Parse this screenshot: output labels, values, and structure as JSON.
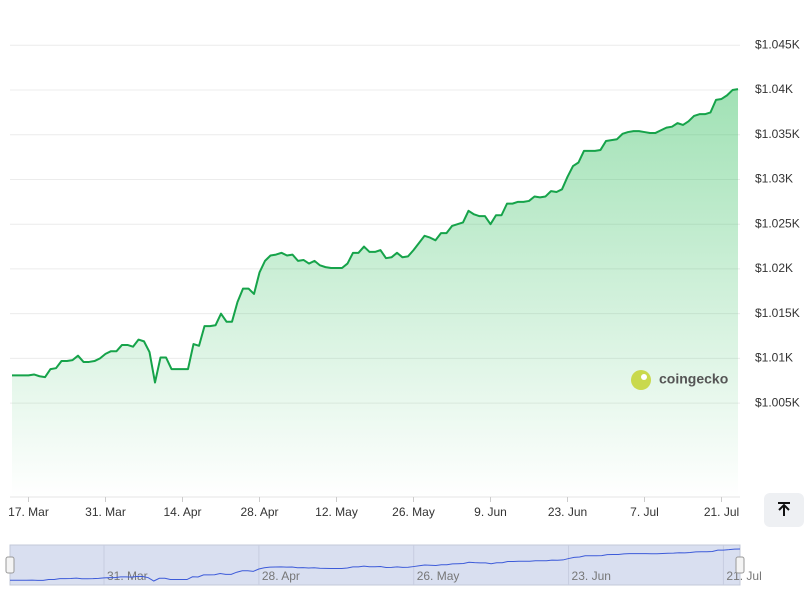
{
  "chart_data": {
    "type": "area",
    "categories": [
      null,
      null,
      null,
      "17. Mar",
      null,
      null,
      null,
      null,
      null,
      null,
      null,
      null,
      null,
      null,
      null,
      null,
      null,
      "31. Mar",
      null,
      null,
      null,
      null,
      null,
      null,
      null,
      null,
      null,
      null,
      null,
      null,
      null,
      "14. Apr",
      null,
      null,
      null,
      null,
      null,
      null,
      null,
      null,
      null,
      null,
      null,
      null,
      null,
      "28. Apr",
      null,
      null,
      null,
      null,
      null,
      null,
      null,
      null,
      null,
      null,
      null,
      null,
      null,
      "12. May",
      null,
      null,
      null,
      null,
      null,
      null,
      null,
      null,
      null,
      null,
      null,
      null,
      null,
      "26. May",
      null,
      null,
      null,
      null,
      null,
      null,
      null,
      null,
      null,
      null,
      null,
      null,
      null,
      "9. Jun",
      null,
      null,
      null,
      null,
      null,
      null,
      null,
      null,
      null,
      null,
      null,
      null,
      null,
      "23. Jun",
      null,
      null,
      null,
      null,
      null,
      null,
      null,
      null,
      null,
      null,
      null,
      null,
      null,
      "7. Jul",
      null,
      null,
      null,
      null,
      null,
      null,
      null,
      null,
      null,
      null,
      null,
      null,
      null,
      "21. Jul",
      null,
      null,
      null
    ],
    "series": [
      {
        "color": "#16a34a",
        "values": [
          1008.1,
          1008.1,
          1008.1,
          1008.1,
          1008.2,
          1008.0,
          1007.9,
          1008.8,
          1008.9,
          1009.7,
          1009.7,
          1009.8,
          1010.3,
          1009.6,
          1009.6,
          1009.7,
          1010.0,
          1010.5,
          1010.8,
          1010.8,
          1011.5,
          1011.5,
          1011.3,
          1012.1,
          1011.9,
          1010.7,
          1007.3,
          1010.1,
          1010.1,
          1008.8,
          1008.8,
          1008.8,
          1008.8,
          1011.6,
          1011.4,
          1013.6,
          1013.6,
          1013.7,
          1015.0,
          1014.1,
          1014.1,
          1016.3,
          1017.8,
          1017.8,
          1017.2,
          1019.6,
          1020.9,
          1021.5,
          1021.6,
          1021.8,
          1021.5,
          1021.6,
          1020.9,
          1021.0,
          1020.6,
          1020.9,
          1020.4,
          1020.2,
          1020.1,
          1020.1,
          1020.1,
          1020.6,
          1021.8,
          1021.8,
          1022.5,
          1021.9,
          1021.9,
          1022.1,
          1021.2,
          1021.3,
          1021.8,
          1021.3,
          1021.4,
          1022.1,
          1022.9,
          1023.7,
          1023.5,
          1023.2,
          1024.0,
          1024.0,
          1024.8,
          1025.0,
          1025.2,
          1026.5,
          1026.1,
          1025.9,
          1025.9,
          1025.0,
          1026.0,
          1026.0,
          1027.3,
          1027.3,
          1027.5,
          1027.5,
          1027.6,
          1028.1,
          1028.0,
          1028.1,
          1028.7,
          1028.6,
          1028.9,
          1030.3,
          1031.5,
          1031.9,
          1033.2,
          1033.2,
          1033.2,
          1033.3,
          1034.3,
          1034.4,
          1034.5,
          1035.1,
          1035.3,
          1035.4,
          1035.4,
          1035.3,
          1035.2,
          1035.2,
          1035.5,
          1035.8,
          1035.9,
          1036.3,
          1036.1,
          1036.5,
          1037.1,
          1037.3,
          1037.3,
          1037.5,
          1038.9,
          1039.0,
          1039.4,
          1040.0,
          1040.1
        ]
      }
    ],
    "ylim": [
      994.5,
      1048.5
    ],
    "yticks": [
      {
        "value": 1005,
        "label": "$1.005K"
      },
      {
        "value": 1010,
        "label": "$1.01K"
      },
      {
        "value": 1015,
        "label": "$1.015K"
      },
      {
        "value": 1020,
        "label": "$1.02K"
      },
      {
        "value": 1025,
        "label": "$1.025K"
      },
      {
        "value": 1030,
        "label": "$1.03K"
      },
      {
        "value": 1035,
        "label": "$1.035K"
      },
      {
        "value": 1040,
        "label": "$1.04K"
      },
      {
        "value": 1045,
        "label": "$1.045K"
      }
    ],
    "grid": true,
    "watermark": "coingecko",
    "navigator_labels": [
      "31. Mar",
      "28. Apr",
      "26. May",
      "23. Jun",
      "21. Jul"
    ]
  }
}
